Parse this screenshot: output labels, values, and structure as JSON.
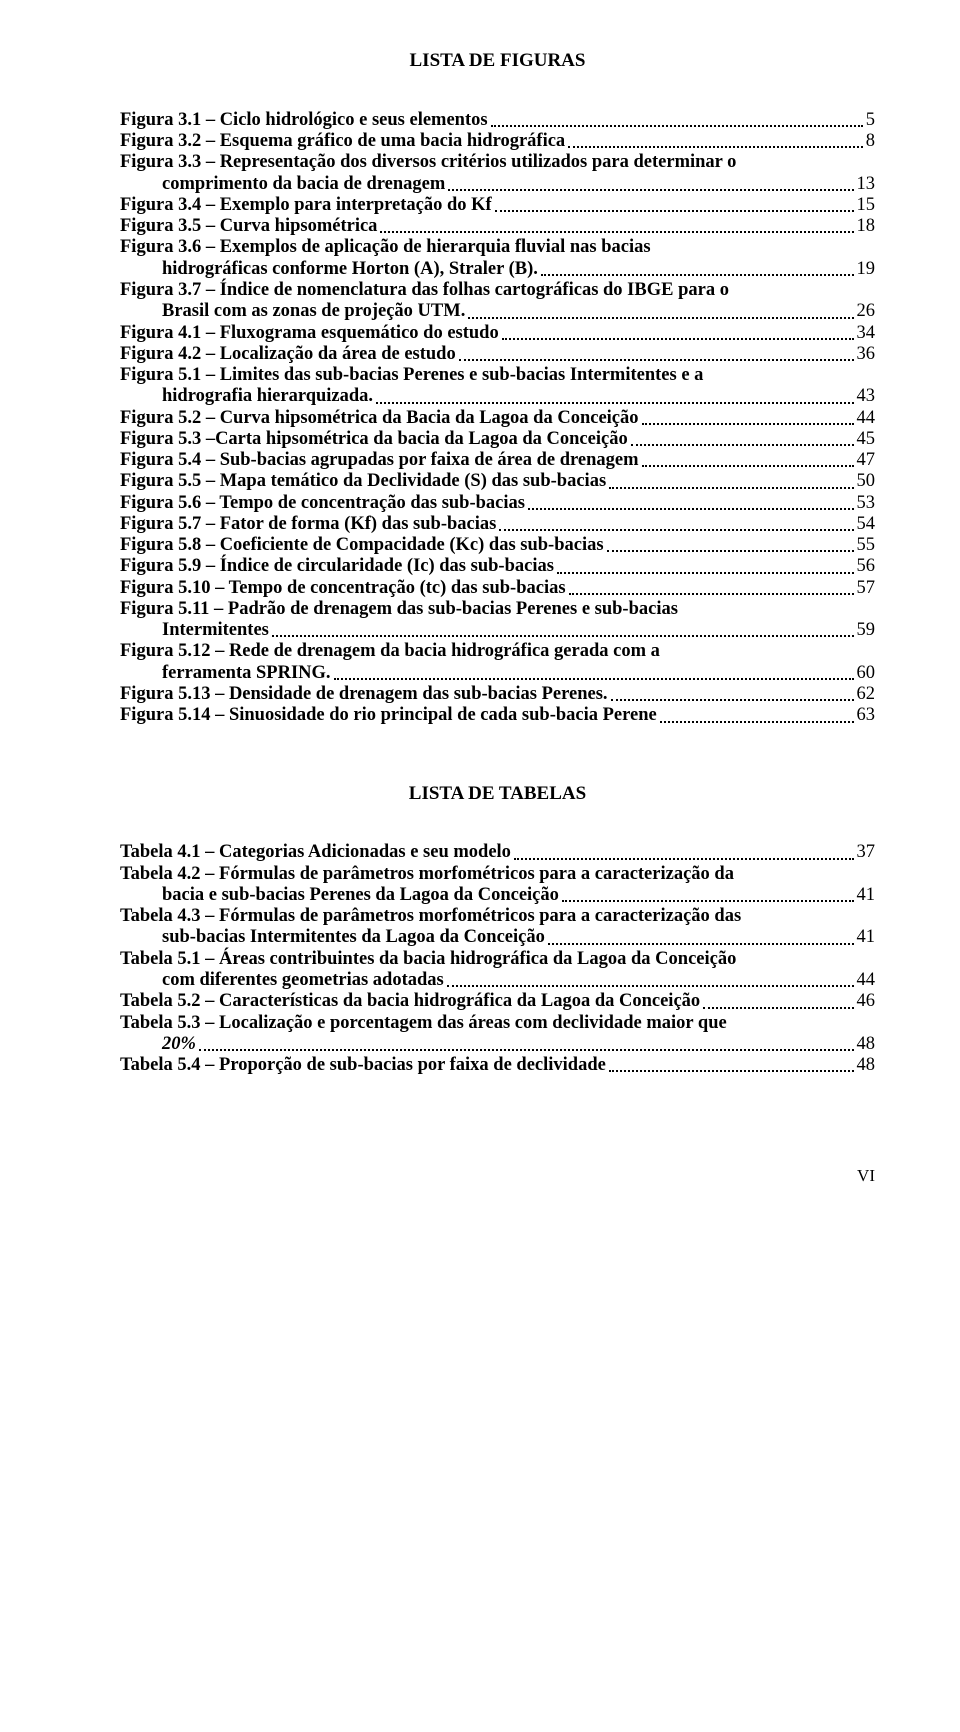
{
  "figures": {
    "title": "LISTA DE FIGURAS",
    "entries": [
      {
        "lines": [
          "Figura 3.1 – Ciclo hidrológico e seus elementos"
        ],
        "page": "5"
      },
      {
        "lines": [
          "Figura 3.2 – Esquema gráfico de uma bacia hidrográfica"
        ],
        "page": "8"
      },
      {
        "lines": [
          "Figura 3.3 – Representação dos diversos critérios utilizados para determinar o",
          "comprimento da bacia de drenagem"
        ],
        "page": "13"
      },
      {
        "lines": [
          "Figura 3.4 – Exemplo para interpretação do Kf"
        ],
        "page": "15"
      },
      {
        "lines": [
          "Figura 3.5 – Curva hipsométrica"
        ],
        "page": "18"
      },
      {
        "lines": [
          "Figura 3.6 – Exemplos de aplicação de hierarquia fluvial nas bacias",
          "hidrográficas conforme Horton (A), Straler (B)."
        ],
        "page": "19"
      },
      {
        "lines": [
          "Figura 3.7 – Índice de nomenclatura das folhas cartográficas  do IBGE para o",
          "Brasil com as zonas de projeção UTM."
        ],
        "page": "26"
      },
      {
        "lines": [
          "Figura 4.1 – Fluxograma esquemático do estudo"
        ],
        "page": "34"
      },
      {
        "lines": [
          "Figura 4.2 – Localização da área de estudo"
        ],
        "page": "36"
      },
      {
        "lines": [
          "Figura 5.1 – Limites das sub-bacias Perenes e sub-bacias Intermitentes e a",
          "hidrografia hierarquizada."
        ],
        "page": "43"
      },
      {
        "lines": [
          "Figura 5.2 – Curva hipsométrica da Bacia da Lagoa da Conceição"
        ],
        "page": "44"
      },
      {
        "lines": [
          "Figura 5.3 –Carta hipsométrica da bacia da Lagoa da Conceição"
        ],
        "page": "45"
      },
      {
        "lines": [
          "Figura 5.4 – Sub-bacias agrupadas por faixa de área de drenagem"
        ],
        "page": "47"
      },
      {
        "lines": [
          "Figura 5.5 – Mapa temático da Declividade (S) das sub-bacias"
        ],
        "page": "50"
      },
      {
        "lines": [
          "Figura 5.6 – Tempo de concentração das sub-bacias"
        ],
        "page": "53"
      },
      {
        "lines": [
          "Figura 5.7 – Fator de forma (Kf) das sub-bacias"
        ],
        "page": "54"
      },
      {
        "lines": [
          "Figura 5.8 – Coeficiente de Compacidade (Kc) das sub-bacias"
        ],
        "page": "55"
      },
      {
        "lines": [
          "Figura 5.9 – Índice de circularidade (Ic) das sub-bacias"
        ],
        "page": "56"
      },
      {
        "lines": [
          "Figura 5.10 – Tempo de concentração (tc) das sub-bacias"
        ],
        "page": "57"
      },
      {
        "lines": [
          "Figura 5.11 – Padrão de drenagem das sub-bacias Perenes e sub-bacias",
          "Intermitentes"
        ],
        "page": "59"
      },
      {
        "lines": [
          "Figura 5.12 – Rede de drenagem da bacia hidrográfica gerada com a",
          "ferramenta SPRING."
        ],
        "page": "60"
      },
      {
        "lines": [
          "Figura 5.13 – Densidade de drenagem das sub-bacias Perenes."
        ],
        "page": "62"
      },
      {
        "lines": [
          "Figura 5.14 – Sinuosidade do rio principal de cada sub-bacia Perene"
        ],
        "page": "63"
      }
    ]
  },
  "tables": {
    "title": "LISTA DE TABELAS",
    "entries": [
      {
        "lines": [
          "Tabela 4.1 – Categorias Adicionadas e seu modelo"
        ],
        "page": "37"
      },
      {
        "lines": [
          "Tabela 4.2 – Fórmulas de parâmetros morfométricos para a caracterização da",
          "bacia e sub-bacias Perenes da Lagoa da Conceição"
        ],
        "page": "41"
      },
      {
        "lines": [
          "Tabela 4.3 – Fórmulas de parâmetros morfométricos para a caracterização das",
          "sub-bacias Intermitentes da Lagoa da Conceição"
        ],
        "page": "41"
      },
      {
        "lines": [
          "Tabela 5.1 – Áreas contribuintes da bacia hidrográfica da Lagoa da Conceição",
          "com diferentes geometrias adotadas"
        ],
        "page": "44"
      },
      {
        "lines": [
          "Tabela 5.2 – Características da bacia hidrográfica da Lagoa da Conceição"
        ],
        "page": "46"
      },
      {
        "lines": [
          "Tabela 5.3 – Localização e porcentagem das áreas com declividade maior que"
        ],
        "page": "48",
        "italicLast": "20%"
      },
      {
        "lines": [
          "Tabela 5.4 – Proporção de sub-bacias por faixa de declividade"
        ],
        "page": "48"
      }
    ]
  },
  "pageNumber": "VI"
}
